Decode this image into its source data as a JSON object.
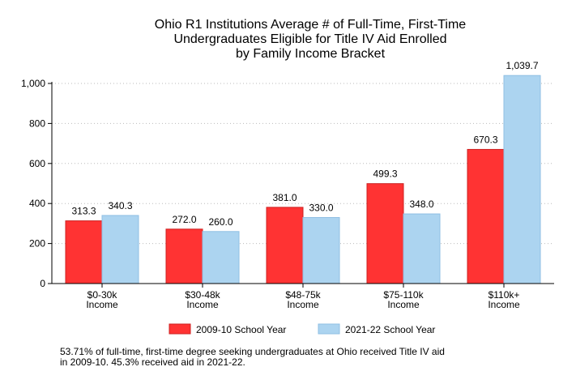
{
  "chart_data": {
    "type": "bar",
    "title_lines": [
      "Ohio R1 Institutions Average # of Full-Time, First-Time",
      "Undergraduates Eligible for Title IV Aid Enrolled",
      "by Family Income Bracket"
    ],
    "categories": [
      [
        "$0-30k",
        "Income"
      ],
      [
        "$30-48k",
        "Income"
      ],
      [
        "$48-75k",
        "Income"
      ],
      [
        "$75-110k",
        "Income"
      ],
      [
        "$110k+",
        "Income"
      ]
    ],
    "series": [
      {
        "name": "2009-10 School Year",
        "color": "#ff3333",
        "values": [
          313.3,
          272.0,
          381.0,
          499.3,
          670.3
        ],
        "labels": [
          "313.3",
          "272.0",
          "381.0",
          "499.3",
          "670.3"
        ]
      },
      {
        "name": "2021-22 School Year",
        "color": "#acd4f0",
        "values": [
          340.3,
          260.0,
          330.0,
          348.0,
          1039.7
        ],
        "labels": [
          "340.3",
          "260.0",
          "330.0",
          "348.0",
          "1,039.7"
        ]
      }
    ],
    "ylim": [
      0,
      1000
    ],
    "yticks": [
      0,
      200,
      400,
      600,
      800,
      1000
    ],
    "ytick_labels": [
      "0",
      "200",
      "400",
      "600",
      "800",
      "1,000"
    ],
    "grid": true,
    "legend_position": "bottom"
  },
  "note_lines": [
    "53.71% of full-time, first-time degree seeking undergraduates at Ohio received Title IV aid",
    "in 2009-10. 45.3% received aid in 2021-22."
  ]
}
